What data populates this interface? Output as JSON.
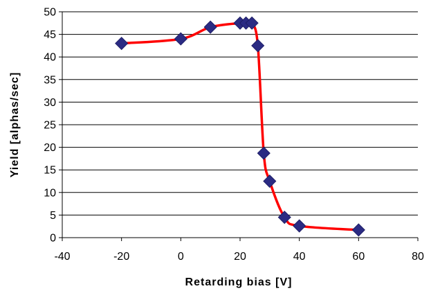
{
  "chart_data": {
    "type": "scatter",
    "title": "",
    "xlabel": "Retarding bias [V]",
    "ylabel": "Yield [alphas/sec]",
    "xlim": [
      -40,
      80
    ],
    "ylim": [
      0,
      50
    ],
    "x_ticks": [
      -40,
      -20,
      0,
      20,
      40,
      60,
      80
    ],
    "y_ticks": [
      0,
      5,
      10,
      15,
      20,
      25,
      30,
      35,
      40,
      45,
      50
    ],
    "grid": "horizontal",
    "legend": "none",
    "series": [
      {
        "marker": "diamond",
        "marker_color": "#2B2B83",
        "line_color": "#FF0000",
        "line": "smoothed",
        "x": [
          -20,
          0,
          10,
          20,
          22,
          24,
          26,
          28,
          30,
          35,
          40,
          60
        ],
        "y": [
          43,
          44,
          46.6,
          47.5,
          47.5,
          47.5,
          42.5,
          18.7,
          12.5,
          4.5,
          2.6,
          1.7
        ]
      }
    ]
  }
}
